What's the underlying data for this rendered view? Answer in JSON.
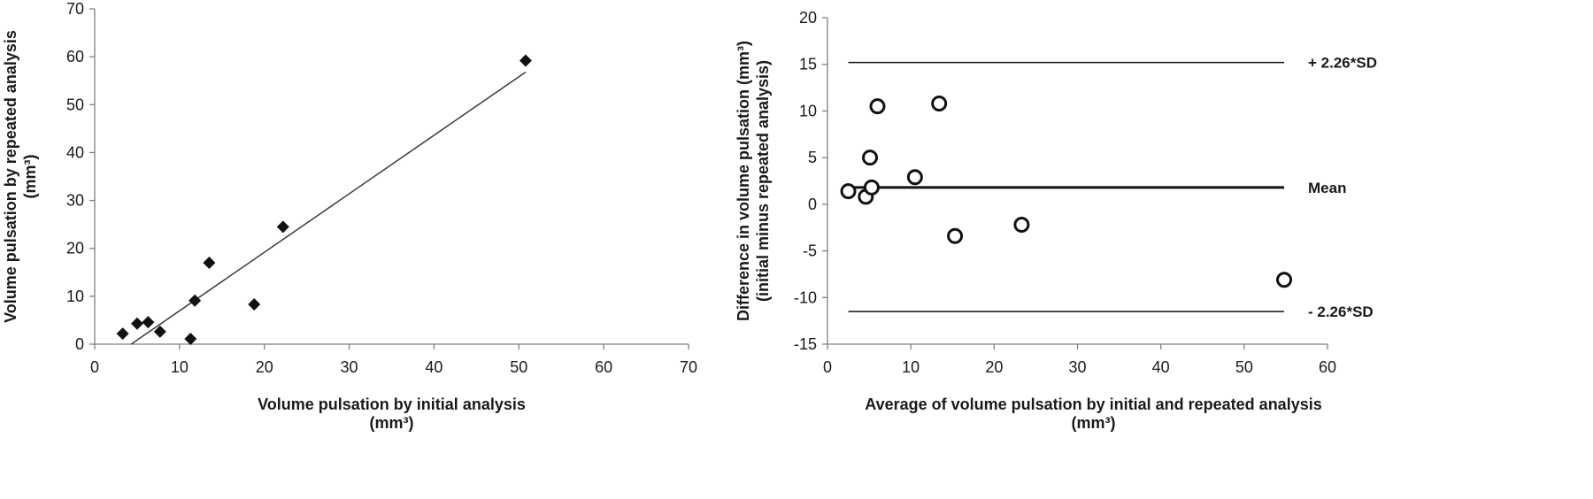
{
  "chart_data": [
    {
      "type": "scatter",
      "xlabel": "Volume pulsation by initial analysis",
      "xlabel_unit": "(mm³)",
      "ylabel": "Volume pulsation by repeated analysis",
      "ylabel_unit": "(mm³)",
      "xlim": [
        0,
        70
      ],
      "ylim": [
        0,
        70
      ],
      "xticks": [
        0,
        10,
        20,
        30,
        40,
        50,
        60,
        70
      ],
      "yticks": [
        0,
        10,
        20,
        30,
        40,
        50,
        60,
        70
      ],
      "marker": "diamond",
      "grid": false,
      "points": [
        {
          "x": 3.3,
          "y": 2.2
        },
        {
          "x": 5.0,
          "y": 4.3
        },
        {
          "x": 6.3,
          "y": 4.6
        },
        {
          "x": 7.7,
          "y": 2.6
        },
        {
          "x": 11.3,
          "y": 1.1
        },
        {
          "x": 11.8,
          "y": 9.1
        },
        {
          "x": 13.5,
          "y": 17.0
        },
        {
          "x": 18.8,
          "y": 8.3
        },
        {
          "x": 22.2,
          "y": 24.5
        },
        {
          "x": 50.8,
          "y": 59.2
        }
      ],
      "regression_line": {
        "x1": 4.3,
        "y1": 0.0,
        "x2": 50.8,
        "y2": 56.8
      }
    },
    {
      "type": "scatter",
      "xlabel": "Average of volume pulsation by initial and repeated analysis",
      "xlabel_unit": "(mm³)",
      "ylabel": "Difference in volume pulsation (mm³)",
      "ylabel_sub": "(initial minus repeated analysis)",
      "xlim": [
        0,
        60
      ],
      "ylim": [
        -15,
        20
      ],
      "xticks": [
        0,
        10,
        20,
        30,
        40,
        50,
        60
      ],
      "yticks": [
        -15,
        -10,
        -5,
        0,
        5,
        10,
        15,
        20
      ],
      "marker": "open-circle",
      "grid": false,
      "points": [
        {
          "x": 2.5,
          "y": 1.4
        },
        {
          "x": 4.6,
          "y": 0.8
        },
        {
          "x": 5.1,
          "y": 5.0
        },
        {
          "x": 5.3,
          "y": 1.8
        },
        {
          "x": 6.0,
          "y": 10.5
        },
        {
          "x": 10.5,
          "y": 2.9
        },
        {
          "x": 13.4,
          "y": 10.8
        },
        {
          "x": 15.3,
          "y": -3.4
        },
        {
          "x": 23.3,
          "y": -2.2
        },
        {
          "x": 54.8,
          "y": -8.1
        }
      ],
      "reference_lines": [
        {
          "label": "+ 2.26*SD",
          "y": 15.2,
          "x_start": 2.5,
          "x_end": 54.8,
          "bold": false
        },
        {
          "label": "Mean",
          "y": 1.8,
          "x_start": 2.5,
          "x_end": 54.8,
          "bold": true
        },
        {
          "label": "- 2.26*SD",
          "y": -11.5,
          "x_start": 2.5,
          "x_end": 54.8,
          "bold": false
        }
      ]
    }
  ]
}
